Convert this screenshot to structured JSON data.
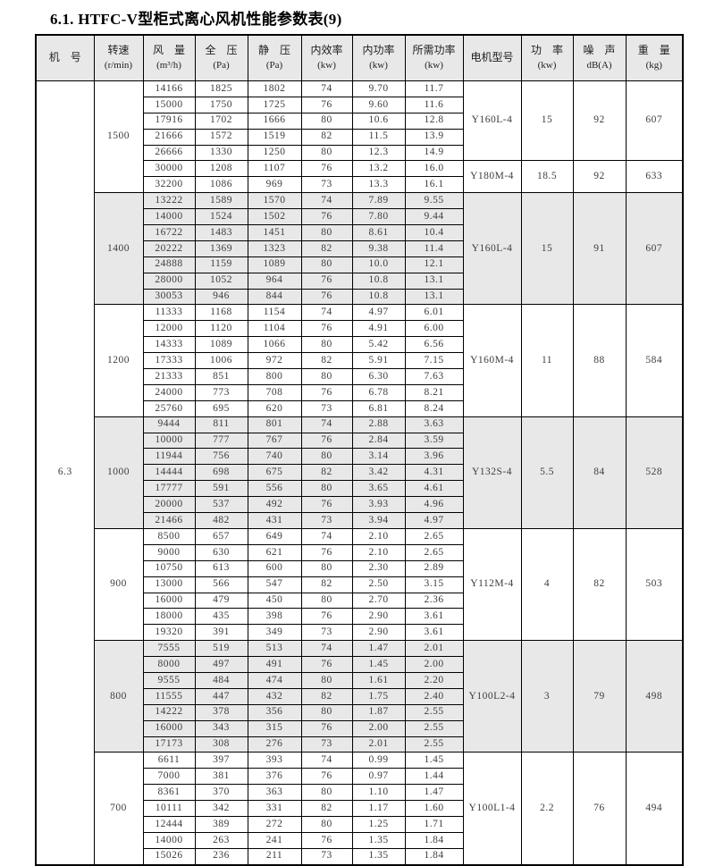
{
  "title": "6.1. HTFC-V型柜式离心风机性能参数表(9)",
  "machine_no": "6.3",
  "columns": [
    {
      "key": "machine-no",
      "label": "机　号",
      "unit": ""
    },
    {
      "key": "speed",
      "label": "转速",
      "unit": "(r/min)"
    },
    {
      "key": "flow-rate",
      "label": "风　量",
      "unit": "(m³/h)"
    },
    {
      "key": "total-pressure",
      "label": "全　压",
      "unit": "(Pa)"
    },
    {
      "key": "static-pressure",
      "label": "静　压",
      "unit": "(Pa)"
    },
    {
      "key": "internal-efficiency",
      "label": "内效率",
      "unit": "(kw)"
    },
    {
      "key": "internal-power",
      "label": "内功率",
      "unit": "(kw)"
    },
    {
      "key": "required-power",
      "label": "所需功率",
      "unit": "(kw)"
    },
    {
      "key": "motor-model",
      "label": "电机型号",
      "unit": ""
    },
    {
      "key": "motor-power",
      "label": "功　率",
      "unit": "(kw)"
    },
    {
      "key": "noise",
      "label": "噪　声",
      "unit": "dB(A)"
    },
    {
      "key": "weight",
      "label": "重　量",
      "unit": "(kg)"
    }
  ],
  "shade_color": "#e8e8e8",
  "groups": [
    {
      "speed": "1500",
      "shaded": false,
      "rows": [
        [
          "14166",
          "1825",
          "1802",
          "74",
          "9.70",
          "11.7"
        ],
        [
          "15000",
          "1750",
          "1725",
          "76",
          "9.60",
          "11.6"
        ],
        [
          "17916",
          "1702",
          "1666",
          "80",
          "10.6",
          "12.8"
        ],
        [
          "21666",
          "1572",
          "1519",
          "82",
          "11.5",
          "13.9"
        ],
        [
          "26666",
          "1330",
          "1250",
          "80",
          "12.3",
          "14.9"
        ],
        [
          "30000",
          "1208",
          "1107",
          "76",
          "13.2",
          "16.0"
        ],
        [
          "32200",
          "1086",
          "969",
          "73",
          "13.3",
          "16.1"
        ]
      ],
      "motors": [
        {
          "model": "Y160L-4",
          "power": "15",
          "noise": "92",
          "weight": "607",
          "rows": 5
        },
        {
          "model": "Y180M-4",
          "power": "18.5",
          "noise": "92",
          "weight": "633",
          "rows": 2
        }
      ]
    },
    {
      "speed": "1400",
      "shaded": true,
      "rows": [
        [
          "13222",
          "1589",
          "1570",
          "74",
          "7.89",
          "9.55"
        ],
        [
          "14000",
          "1524",
          "1502",
          "76",
          "7.80",
          "9.44"
        ],
        [
          "16722",
          "1483",
          "1451",
          "80",
          "8.61",
          "10.4"
        ],
        [
          "20222",
          "1369",
          "1323",
          "82",
          "9.38",
          "11.4"
        ],
        [
          "24888",
          "1159",
          "1089",
          "80",
          "10.0",
          "12.1"
        ],
        [
          "28000",
          "1052",
          "964",
          "76",
          "10.8",
          "13.1"
        ],
        [
          "30053",
          "946",
          "844",
          "76",
          "10.8",
          "13.1"
        ]
      ],
      "motors": [
        {
          "model": "Y160L-4",
          "power": "15",
          "noise": "91",
          "weight": "607",
          "rows": 7
        }
      ]
    },
    {
      "speed": "1200",
      "shaded": false,
      "rows": [
        [
          "11333",
          "1168",
          "1154",
          "74",
          "4.97",
          "6.01"
        ],
        [
          "12000",
          "1120",
          "1104",
          "76",
          "4.91",
          "6.00"
        ],
        [
          "14333",
          "1089",
          "1066",
          "80",
          "5.42",
          "6.56"
        ],
        [
          "17333",
          "1006",
          "972",
          "82",
          "5.91",
          "7.15"
        ],
        [
          "21333",
          "851",
          "800",
          "80",
          "6.30",
          "7.63"
        ],
        [
          "24000",
          "773",
          "708",
          "76",
          "6.78",
          "8.21"
        ],
        [
          "25760",
          "695",
          "620",
          "73",
          "6.81",
          "8.24"
        ]
      ],
      "motors": [
        {
          "model": "Y160M-4",
          "power": "11",
          "noise": "88",
          "weight": "584",
          "rows": 7
        }
      ]
    },
    {
      "speed": "1000",
      "shaded": true,
      "rows": [
        [
          "9444",
          "811",
          "801",
          "74",
          "2.88",
          "3.63"
        ],
        [
          "10000",
          "777",
          "767",
          "76",
          "2.84",
          "3.59"
        ],
        [
          "11944",
          "756",
          "740",
          "80",
          "3.14",
          "3.96"
        ],
        [
          "14444",
          "698",
          "675",
          "82",
          "3.42",
          "4.31"
        ],
        [
          "17777",
          "591",
          "556",
          "80",
          "3.65",
          "4.61"
        ],
        [
          "20000",
          "537",
          "492",
          "76",
          "3.93",
          "4.96"
        ],
        [
          "21466",
          "482",
          "431",
          "73",
          "3.94",
          "4.97"
        ]
      ],
      "motors": [
        {
          "model": "Y132S-4",
          "power": "5.5",
          "noise": "84",
          "weight": "528",
          "rows": 7
        }
      ]
    },
    {
      "speed": "900",
      "shaded": false,
      "rows": [
        [
          "8500",
          "657",
          "649",
          "74",
          "2.10",
          "2.65"
        ],
        [
          "9000",
          "630",
          "621",
          "76",
          "2.10",
          "2.65"
        ],
        [
          "10750",
          "613",
          "600",
          "80",
          "2.30",
          "2.89"
        ],
        [
          "13000",
          "566",
          "547",
          "82",
          "2.50",
          "3.15"
        ],
        [
          "16000",
          "479",
          "450",
          "80",
          "2.70",
          "2.36"
        ],
        [
          "18000",
          "435",
          "398",
          "76",
          "2.90",
          "3.61"
        ],
        [
          "19320",
          "391",
          "349",
          "73",
          "2.90",
          "3.61"
        ]
      ],
      "motors": [
        {
          "model": "Y112M-4",
          "power": "4",
          "noise": "82",
          "weight": "503",
          "rows": 7
        }
      ]
    },
    {
      "speed": "800",
      "shaded": true,
      "rows": [
        [
          "7555",
          "519",
          "513",
          "74",
          "1.47",
          "2.01"
        ],
        [
          "8000",
          "497",
          "491",
          "76",
          "1.45",
          "2.00"
        ],
        [
          "9555",
          "484",
          "474",
          "80",
          "1.61",
          "2.20"
        ],
        [
          "11555",
          "447",
          "432",
          "82",
          "1.75",
          "2.40"
        ],
        [
          "14222",
          "378",
          "356",
          "80",
          "1.87",
          "2.55"
        ],
        [
          "16000",
          "343",
          "315",
          "76",
          "2.00",
          "2.55"
        ],
        [
          "17173",
          "308",
          "276",
          "73",
          "2.01",
          "2.55"
        ]
      ],
      "motors": [
        {
          "model": "Y100L2-4",
          "power": "3",
          "noise": "79",
          "weight": "498",
          "rows": 7
        }
      ]
    },
    {
      "speed": "700",
      "shaded": false,
      "rows": [
        [
          "6611",
          "397",
          "393",
          "74",
          "0.99",
          "1.45"
        ],
        [
          "7000",
          "381",
          "376",
          "76",
          "0.97",
          "1.44"
        ],
        [
          "8361",
          "370",
          "363",
          "80",
          "1.10",
          "1.47"
        ],
        [
          "10111",
          "342",
          "331",
          "82",
          "1.17",
          "1.60"
        ],
        [
          "12444",
          "389",
          "272",
          "80",
          "1.25",
          "1.71"
        ],
        [
          "14000",
          "263",
          "241",
          "76",
          "1.35",
          "1.84"
        ],
        [
          "15026",
          "236",
          "211",
          "73",
          "1.35",
          "1.84"
        ]
      ],
      "motors": [
        {
          "model": "Y100L1-4",
          "power": "2.2",
          "noise": "76",
          "weight": "494",
          "rows": 7
        }
      ]
    }
  ]
}
